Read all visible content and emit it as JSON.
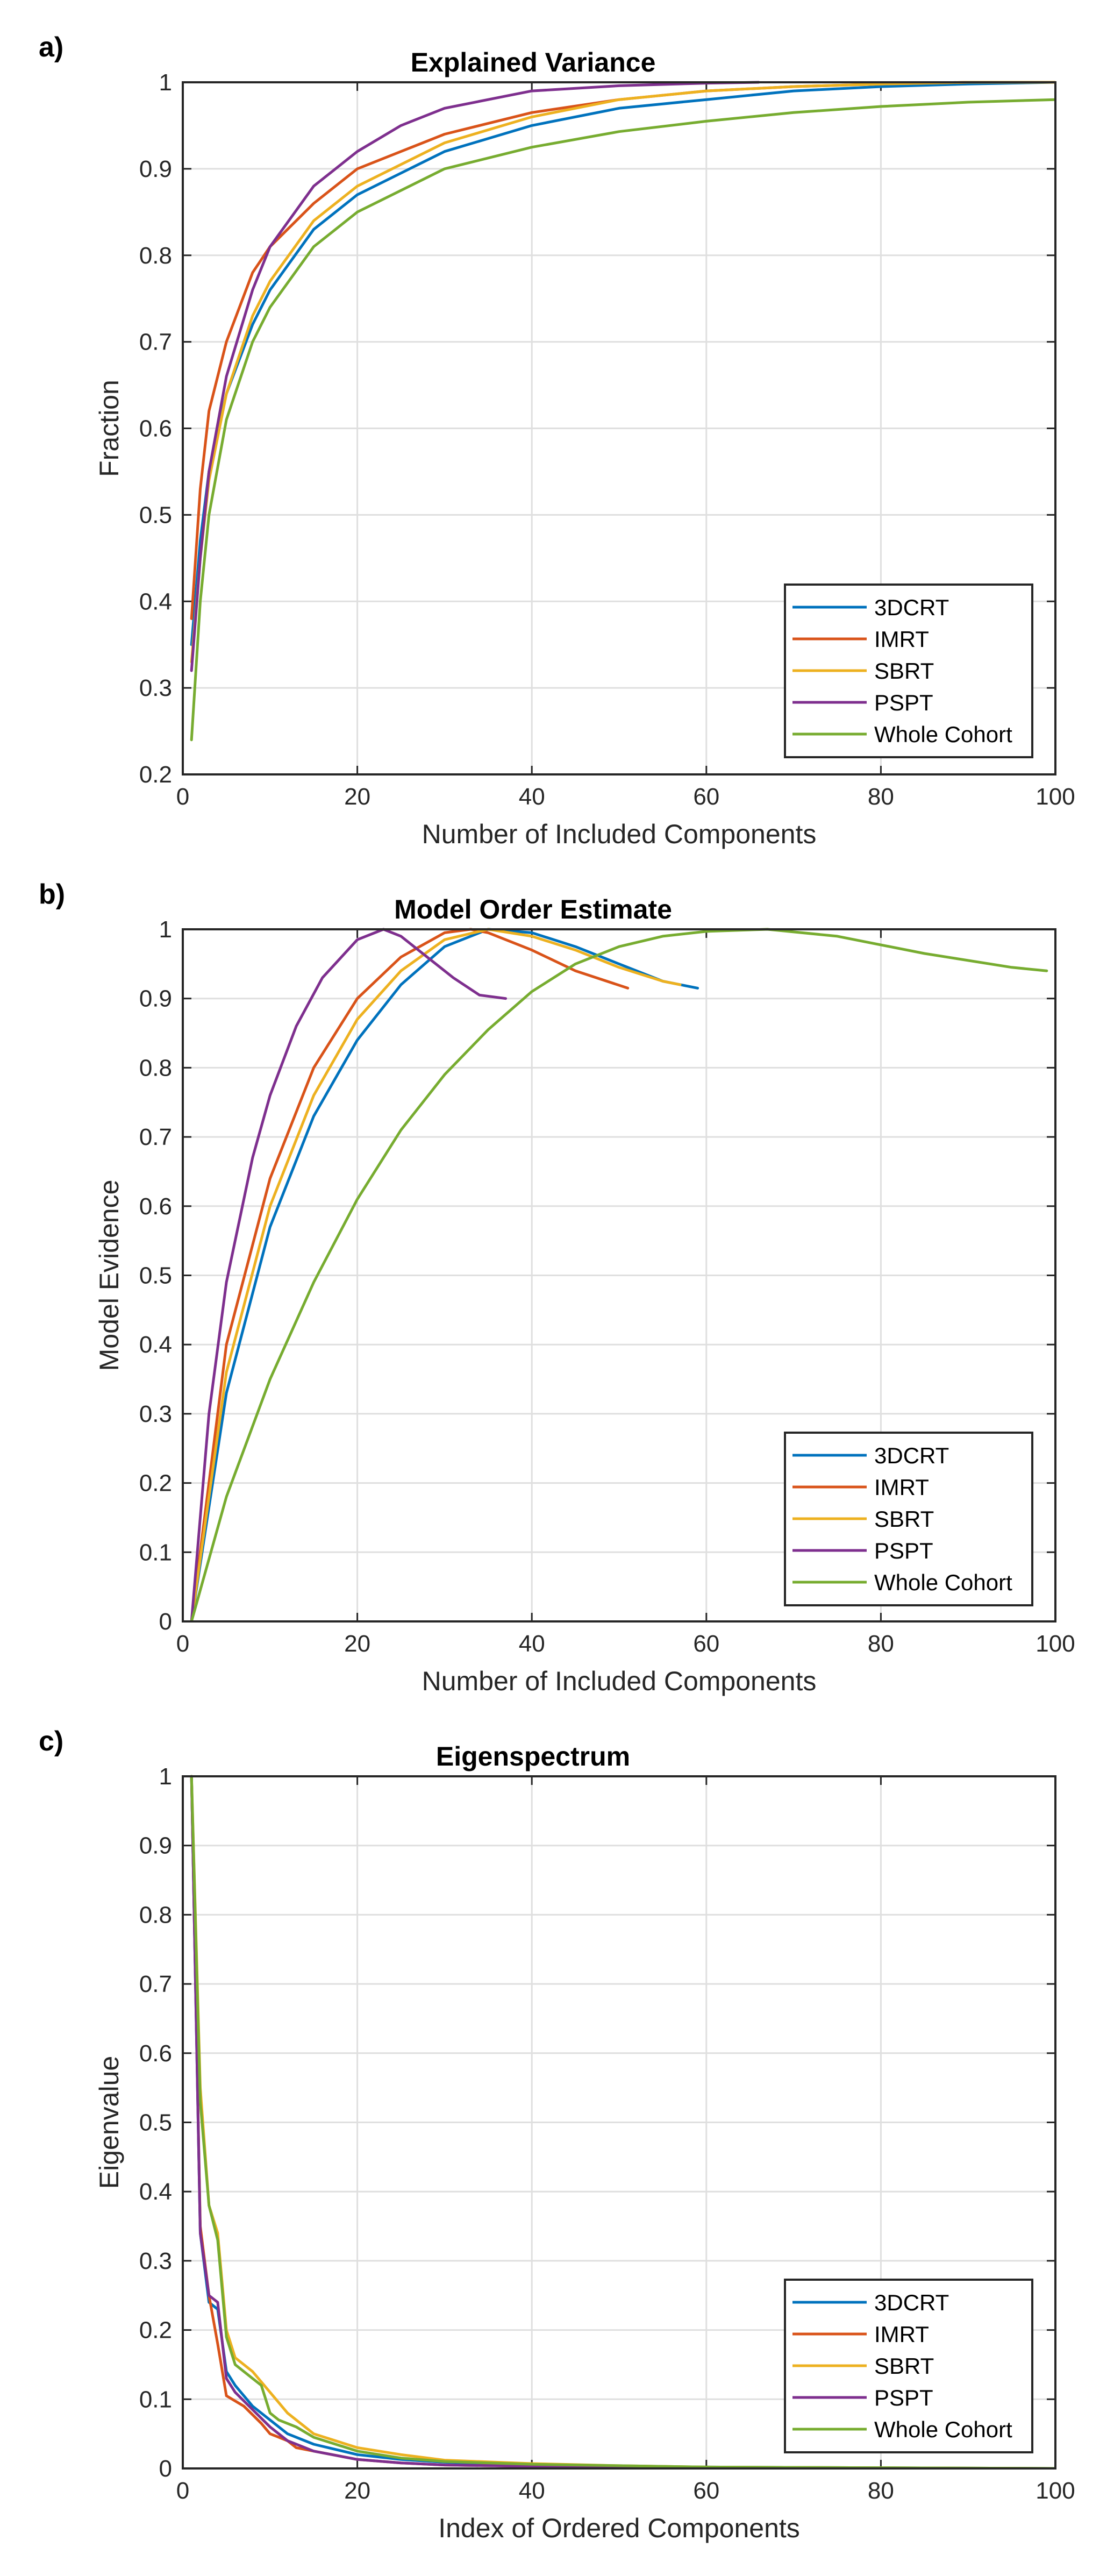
{
  "colors": {
    "3DCRT": "#0072BD",
    "IMRT": "#D95319",
    "SBRT": "#EDB120",
    "PSPT": "#7E2F8E",
    "Whole Cohort": "#77AC30"
  },
  "chart_data": [
    {
      "type": "line",
      "panel": "a)",
      "title": "Explained Variance",
      "xlabel": "Number of Included Components",
      "ylabel": "Fraction",
      "xlim": [
        0,
        100
      ],
      "ylim": [
        0.2,
        1
      ],
      "xticks": [
        0,
        20,
        40,
        60,
        80,
        100
      ],
      "yticks": [
        0.2,
        0.3,
        0.4,
        0.5,
        0.6,
        0.7,
        0.8,
        0.9,
        1
      ],
      "grid": true,
      "legend": "bottom-right",
      "series": [
        {
          "name": "3DCRT",
          "x": [
            1,
            2,
            3,
            5,
            8,
            10,
            15,
            20,
            30,
            40,
            50,
            60,
            70,
            80,
            90,
            100
          ],
          "y": [
            0.35,
            0.47,
            0.55,
            0.64,
            0.72,
            0.76,
            0.83,
            0.87,
            0.92,
            0.95,
            0.97,
            0.98,
            0.99,
            0.995,
            0.998,
            1.0
          ]
        },
        {
          "name": "IMRT",
          "x": [
            1,
            2,
            3,
            5,
            8,
            10,
            15,
            20,
            30,
            40,
            50,
            60,
            70,
            80,
            90,
            100
          ],
          "y": [
            0.38,
            0.53,
            0.62,
            0.7,
            0.78,
            0.81,
            0.86,
            0.9,
            0.94,
            0.965,
            0.98,
            0.99,
            0.995,
            0.998,
            1.0,
            1.0
          ]
        },
        {
          "name": "SBRT",
          "x": [
            1,
            2,
            3,
            5,
            8,
            10,
            15,
            20,
            30,
            40,
            50,
            60,
            70,
            80,
            90,
            100
          ],
          "y": [
            0.33,
            0.45,
            0.54,
            0.64,
            0.73,
            0.77,
            0.84,
            0.88,
            0.93,
            0.96,
            0.98,
            0.99,
            0.995,
            0.998,
            1.0,
            1.0
          ]
        },
        {
          "name": "PSPT",
          "x": [
            1,
            2,
            3,
            5,
            8,
            10,
            15,
            20,
            25,
            30,
            40,
            50,
            60,
            66
          ],
          "y": [
            0.32,
            0.45,
            0.55,
            0.66,
            0.76,
            0.81,
            0.88,
            0.92,
            0.95,
            0.97,
            0.99,
            0.996,
            0.999,
            1.0
          ]
        },
        {
          "name": "Whole Cohort",
          "x": [
            1,
            2,
            3,
            5,
            8,
            10,
            15,
            20,
            30,
            40,
            50,
            60,
            70,
            80,
            90,
            100
          ],
          "y": [
            0.24,
            0.4,
            0.5,
            0.61,
            0.7,
            0.74,
            0.81,
            0.85,
            0.9,
            0.925,
            0.943,
            0.955,
            0.965,
            0.972,
            0.977,
            0.98
          ]
        }
      ]
    },
    {
      "type": "line",
      "panel": "b)",
      "title": "Model Order Estimate",
      "xlabel": "Number of Included Components",
      "ylabel": "Model Evidence",
      "xlim": [
        0,
        100
      ],
      "ylim": [
        0,
        1
      ],
      "xticks": [
        0,
        20,
        40,
        60,
        80,
        100
      ],
      "yticks": [
        0,
        0.1,
        0.2,
        0.3,
        0.4,
        0.5,
        0.6,
        0.7,
        0.8,
        0.9,
        1
      ],
      "grid": true,
      "legend": "bottom-right",
      "series": [
        {
          "name": "3DCRT",
          "x": [
            1,
            5,
            10,
            15,
            20,
            25,
            30,
            35,
            40,
            45,
            50,
            55,
            59
          ],
          "y": [
            0,
            0.33,
            0.57,
            0.73,
            0.84,
            0.92,
            0.975,
            1.0,
            0.995,
            0.975,
            0.95,
            0.925,
            0.915
          ]
        },
        {
          "name": "IMRT",
          "x": [
            1,
            5,
            10,
            15,
            20,
            25,
            30,
            33,
            35,
            40,
            45,
            51
          ],
          "y": [
            0,
            0.4,
            0.64,
            0.8,
            0.9,
            0.96,
            0.995,
            1.0,
            0.995,
            0.97,
            0.94,
            0.915
          ]
        },
        {
          "name": "SBRT",
          "x": [
            1,
            5,
            10,
            15,
            20,
            25,
            30,
            35,
            40,
            45,
            50,
            55,
            57
          ],
          "y": [
            0,
            0.36,
            0.6,
            0.76,
            0.87,
            0.94,
            0.985,
            1.0,
            0.99,
            0.97,
            0.945,
            0.925,
            0.92
          ]
        },
        {
          "name": "PSPT",
          "x": [
            1,
            3,
            5,
            8,
            10,
            13,
            16,
            20,
            23,
            25,
            28,
            31,
            34,
            37
          ],
          "y": [
            0,
            0.3,
            0.49,
            0.67,
            0.76,
            0.86,
            0.93,
            0.985,
            1.0,
            0.99,
            0.96,
            0.93,
            0.905,
            0.9
          ]
        },
        {
          "name": "Whole Cohort",
          "x": [
            1,
            5,
            10,
            15,
            20,
            25,
            30,
            35,
            40,
            45,
            50,
            55,
            60,
            67,
            75,
            85,
            95,
            99
          ],
          "y": [
            0,
            0.18,
            0.35,
            0.49,
            0.61,
            0.71,
            0.79,
            0.855,
            0.91,
            0.95,
            0.975,
            0.99,
            0.997,
            1.0,
            0.99,
            0.965,
            0.945,
            0.94
          ]
        }
      ]
    },
    {
      "type": "line",
      "panel": "c)",
      "title": "Eigenspectrum",
      "xlabel": "Index of Ordered Components",
      "ylabel": "Eigenvalue",
      "xlim": [
        0,
        100
      ],
      "ylim": [
        0,
        1
      ],
      "xticks": [
        0,
        20,
        40,
        60,
        80,
        100
      ],
      "yticks": [
        0,
        0.1,
        0.2,
        0.3,
        0.4,
        0.5,
        0.6,
        0.7,
        0.8,
        0.9,
        1
      ],
      "grid": true,
      "legend": "bottom-right",
      "series": [
        {
          "name": "3DCRT",
          "x": [
            1,
            2,
            3,
            4,
            5,
            6,
            8,
            10,
            12,
            15,
            20,
            25,
            30,
            40,
            50,
            60,
            80,
            100
          ],
          "y": [
            1.0,
            0.34,
            0.24,
            0.23,
            0.14,
            0.12,
            0.09,
            0.07,
            0.05,
            0.035,
            0.02,
            0.013,
            0.009,
            0.005,
            0.003,
            0.002,
            0.001,
            0.0
          ]
        },
        {
          "name": "IMRT",
          "x": [
            1,
            2,
            3,
            4,
            5,
            7,
            9,
            10,
            12,
            13,
            15,
            20,
            25,
            30,
            40,
            50,
            60,
            80,
            100
          ],
          "y": [
            1.0,
            0.35,
            0.25,
            0.18,
            0.105,
            0.09,
            0.065,
            0.05,
            0.04,
            0.03,
            0.025,
            0.013,
            0.008,
            0.005,
            0.003,
            0.002,
            0.001,
            0.0,
            0.0
          ]
        },
        {
          "name": "SBRT",
          "x": [
            1,
            2,
            3,
            4,
            5,
            6,
            8,
            10,
            12,
            15,
            20,
            25,
            30,
            40,
            50,
            60,
            80,
            100
          ],
          "y": [
            1.0,
            0.55,
            0.38,
            0.34,
            0.2,
            0.16,
            0.14,
            0.11,
            0.08,
            0.05,
            0.03,
            0.02,
            0.012,
            0.007,
            0.004,
            0.002,
            0.001,
            0.0
          ]
        },
        {
          "name": "PSPT",
          "x": [
            1,
            2,
            3,
            4,
            5,
            6,
            8,
            10,
            12,
            15,
            20,
            25,
            30,
            40,
            50,
            60,
            80,
            100
          ],
          "y": [
            1.0,
            0.34,
            0.25,
            0.24,
            0.13,
            0.11,
            0.085,
            0.06,
            0.04,
            0.025,
            0.013,
            0.008,
            0.005,
            0.003,
            0.002,
            0.001,
            0.0,
            0.0
          ]
        },
        {
          "name": "Whole Cohort",
          "x": [
            1,
            2,
            3,
            4,
            5,
            6,
            8,
            9,
            10,
            11,
            13,
            15,
            20,
            25,
            30,
            40,
            50,
            60,
            80,
            100
          ],
          "y": [
            1.0,
            0.53,
            0.38,
            0.33,
            0.19,
            0.15,
            0.13,
            0.12,
            0.08,
            0.07,
            0.06,
            0.045,
            0.025,
            0.015,
            0.01,
            0.006,
            0.004,
            0.002,
            0.001,
            0.0
          ]
        }
      ]
    }
  ]
}
